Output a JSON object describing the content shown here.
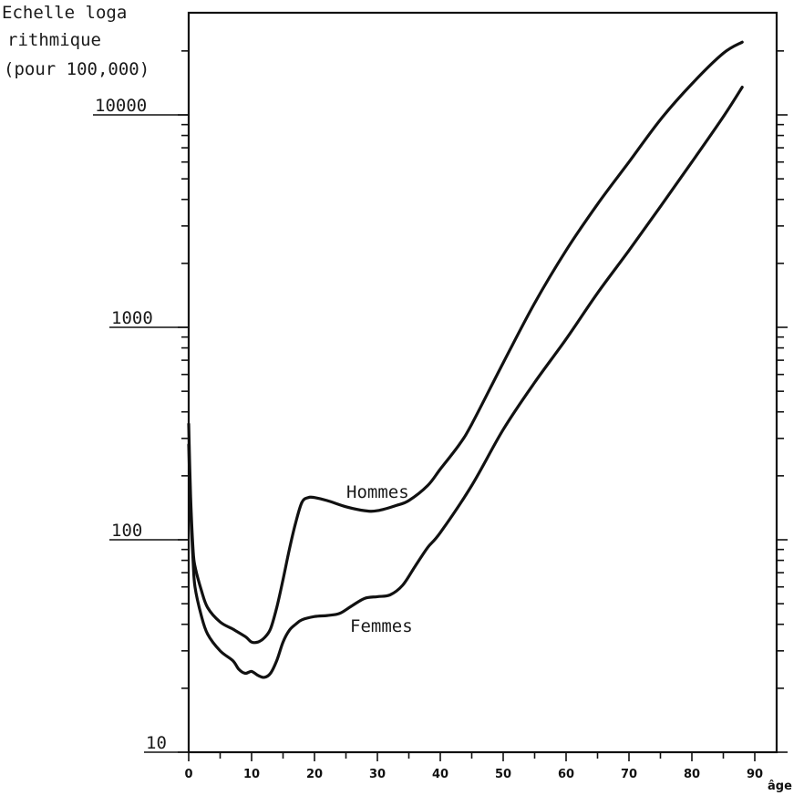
{
  "chart_data": {
    "type": "line",
    "title": "",
    "ylabel_lines": [
      "Echelle loga",
      "rithmique",
      "(pour 100,000)"
    ],
    "xlabel": "âge",
    "y_scale": "log",
    "ylim": [
      10,
      25000
    ],
    "xlim": [
      0,
      90
    ],
    "y_ticks": [
      10,
      100,
      1000,
      10000
    ],
    "y_tick_labels": [
      "10",
      "100",
      "1000",
      "10000"
    ],
    "x_ticks": [
      0,
      10,
      20,
      30,
      40,
      50,
      60,
      70,
      80,
      90
    ],
    "x_tick_labels": [
      "0",
      "10",
      "20",
      "30",
      "40",
      "50",
      "60",
      "70",
      "80",
      "90"
    ],
    "grid": false,
    "series": [
      {
        "name": "Hommes",
        "x": [
          0,
          0.3,
          0.7,
          1,
          2,
          3,
          5,
          7,
          9,
          10,
          11,
          12,
          13,
          14,
          15,
          16,
          17,
          18,
          19,
          20,
          22,
          25,
          28,
          30,
          33,
          35,
          38,
          40,
          43,
          45,
          50,
          55,
          60,
          65,
          70,
          75,
          80,
          85,
          88
        ],
        "y": [
          350,
          160,
          90,
          75,
          58,
          48,
          41,
          38,
          35,
          33,
          33,
          34.5,
          38,
          48,
          65,
          90,
          120,
          150,
          158,
          158,
          153,
          143,
          137,
          137,
          145,
          153,
          180,
          215,
          280,
          350,
          680,
          1300,
          2300,
          3800,
          6000,
          9500,
          14000,
          19500,
          22000
        ]
      },
      {
        "name": "Femmes",
        "x": [
          0,
          0.3,
          0.7,
          1,
          2,
          3,
          5,
          7,
          8,
          9,
          10,
          11,
          12,
          13,
          14,
          15,
          16,
          17,
          18,
          20,
          22,
          24,
          26,
          28,
          30,
          32,
          34,
          36,
          38,
          40,
          45,
          50,
          55,
          60,
          65,
          70,
          75,
          80,
          85,
          88
        ],
        "y": [
          280,
          140,
          80,
          60,
          44,
          36,
          30,
          27,
          24.5,
          23.5,
          24,
          23,
          22.5,
          23.5,
          27,
          33,
          37.5,
          40,
          42,
          43.5,
          44,
          45,
          49,
          53,
          54,
          55,
          61,
          75,
          92,
          108,
          180,
          330,
          550,
          880,
          1450,
          2300,
          3700,
          6000,
          9800,
          13500
        ]
      }
    ]
  }
}
